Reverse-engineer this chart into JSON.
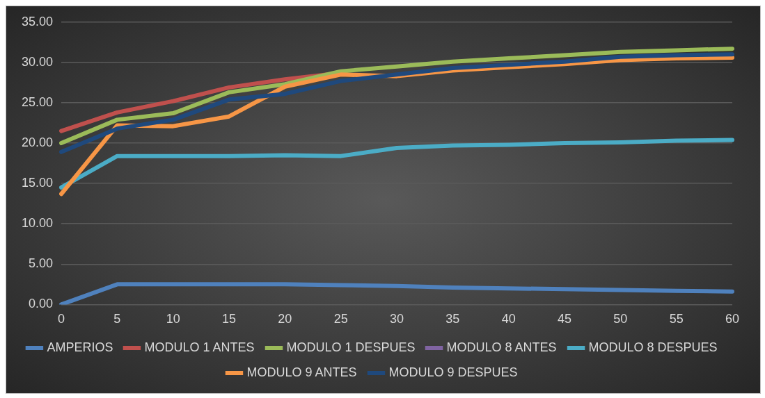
{
  "chart_data": {
    "type": "line",
    "categories": [
      "0",
      "5",
      "10",
      "15",
      "20",
      "25",
      "30",
      "35",
      "40",
      "45",
      "50",
      "55",
      "60"
    ],
    "series": [
      {
        "name": "AMPERIOS",
        "color": "#4f81bd",
        "values": [
          0,
          2.5,
          2.5,
          2.5,
          2.5,
          2.4,
          2.3,
          2.1,
          2.0,
          1.9,
          1.8,
          1.7,
          1.6
        ]
      },
      {
        "name": "MODULO 1 ANTES",
        "color": "#c0504d",
        "values": [
          21.5,
          23.8,
          25.2,
          26.9,
          27.9,
          28.7,
          null,
          null,
          null,
          null,
          null,
          null,
          null
        ]
      },
      {
        "name": "MODULO 1 DESPUES",
        "color": "#9bbb59",
        "values": [
          20.0,
          22.9,
          23.7,
          26.3,
          27.3,
          28.9,
          29.5,
          30.1,
          30.5,
          30.9,
          31.3,
          31.5,
          31.7
        ]
      },
      {
        "name": "MODULO 8 ANTES",
        "color": "#8064a2",
        "values": [
          null,
          null,
          null,
          null,
          null,
          null,
          null,
          null,
          null,
          null,
          null,
          null,
          null
        ]
      },
      {
        "name": "MODULO 8 DESPUES",
        "color": "#4bacc6",
        "values": [
          14.5,
          18.4,
          18.4,
          18.4,
          18.5,
          18.4,
          19.4,
          19.7,
          19.8,
          20.0,
          20.1,
          20.3,
          20.4
        ]
      },
      {
        "name": "MODULO 9 ANTES",
        "color": "#f79646",
        "values": [
          13.7,
          22.2,
          22.1,
          23.3,
          27.0,
          28.5,
          28.3,
          29.0,
          29.4,
          29.8,
          30.3,
          30.5,
          30.6
        ]
      },
      {
        "name": "MODULO 9 DESPUES",
        "color": "#1f497d",
        "values": [
          18.9,
          21.8,
          22.9,
          25.4,
          26.1,
          27.7,
          28.5,
          29.3,
          29.7,
          30.1,
          30.7,
          30.9,
          31.0
        ]
      }
    ],
    "ylim": [
      0,
      35
    ],
    "yticks": [
      {
        "value": 0,
        "label": "0.00"
      },
      {
        "value": 5,
        "label": "5.00"
      },
      {
        "value": 10,
        "label": "10.00"
      },
      {
        "value": 15,
        "label": "15.00"
      },
      {
        "value": 20,
        "label": "20.00"
      },
      {
        "value": 25,
        "label": "25.00"
      },
      {
        "value": 30,
        "label": "30.00"
      },
      {
        "value": 35,
        "label": "35.00"
      }
    ],
    "grid": "y",
    "legend": "bottom",
    "marker": "none",
    "line_style": "solid"
  }
}
